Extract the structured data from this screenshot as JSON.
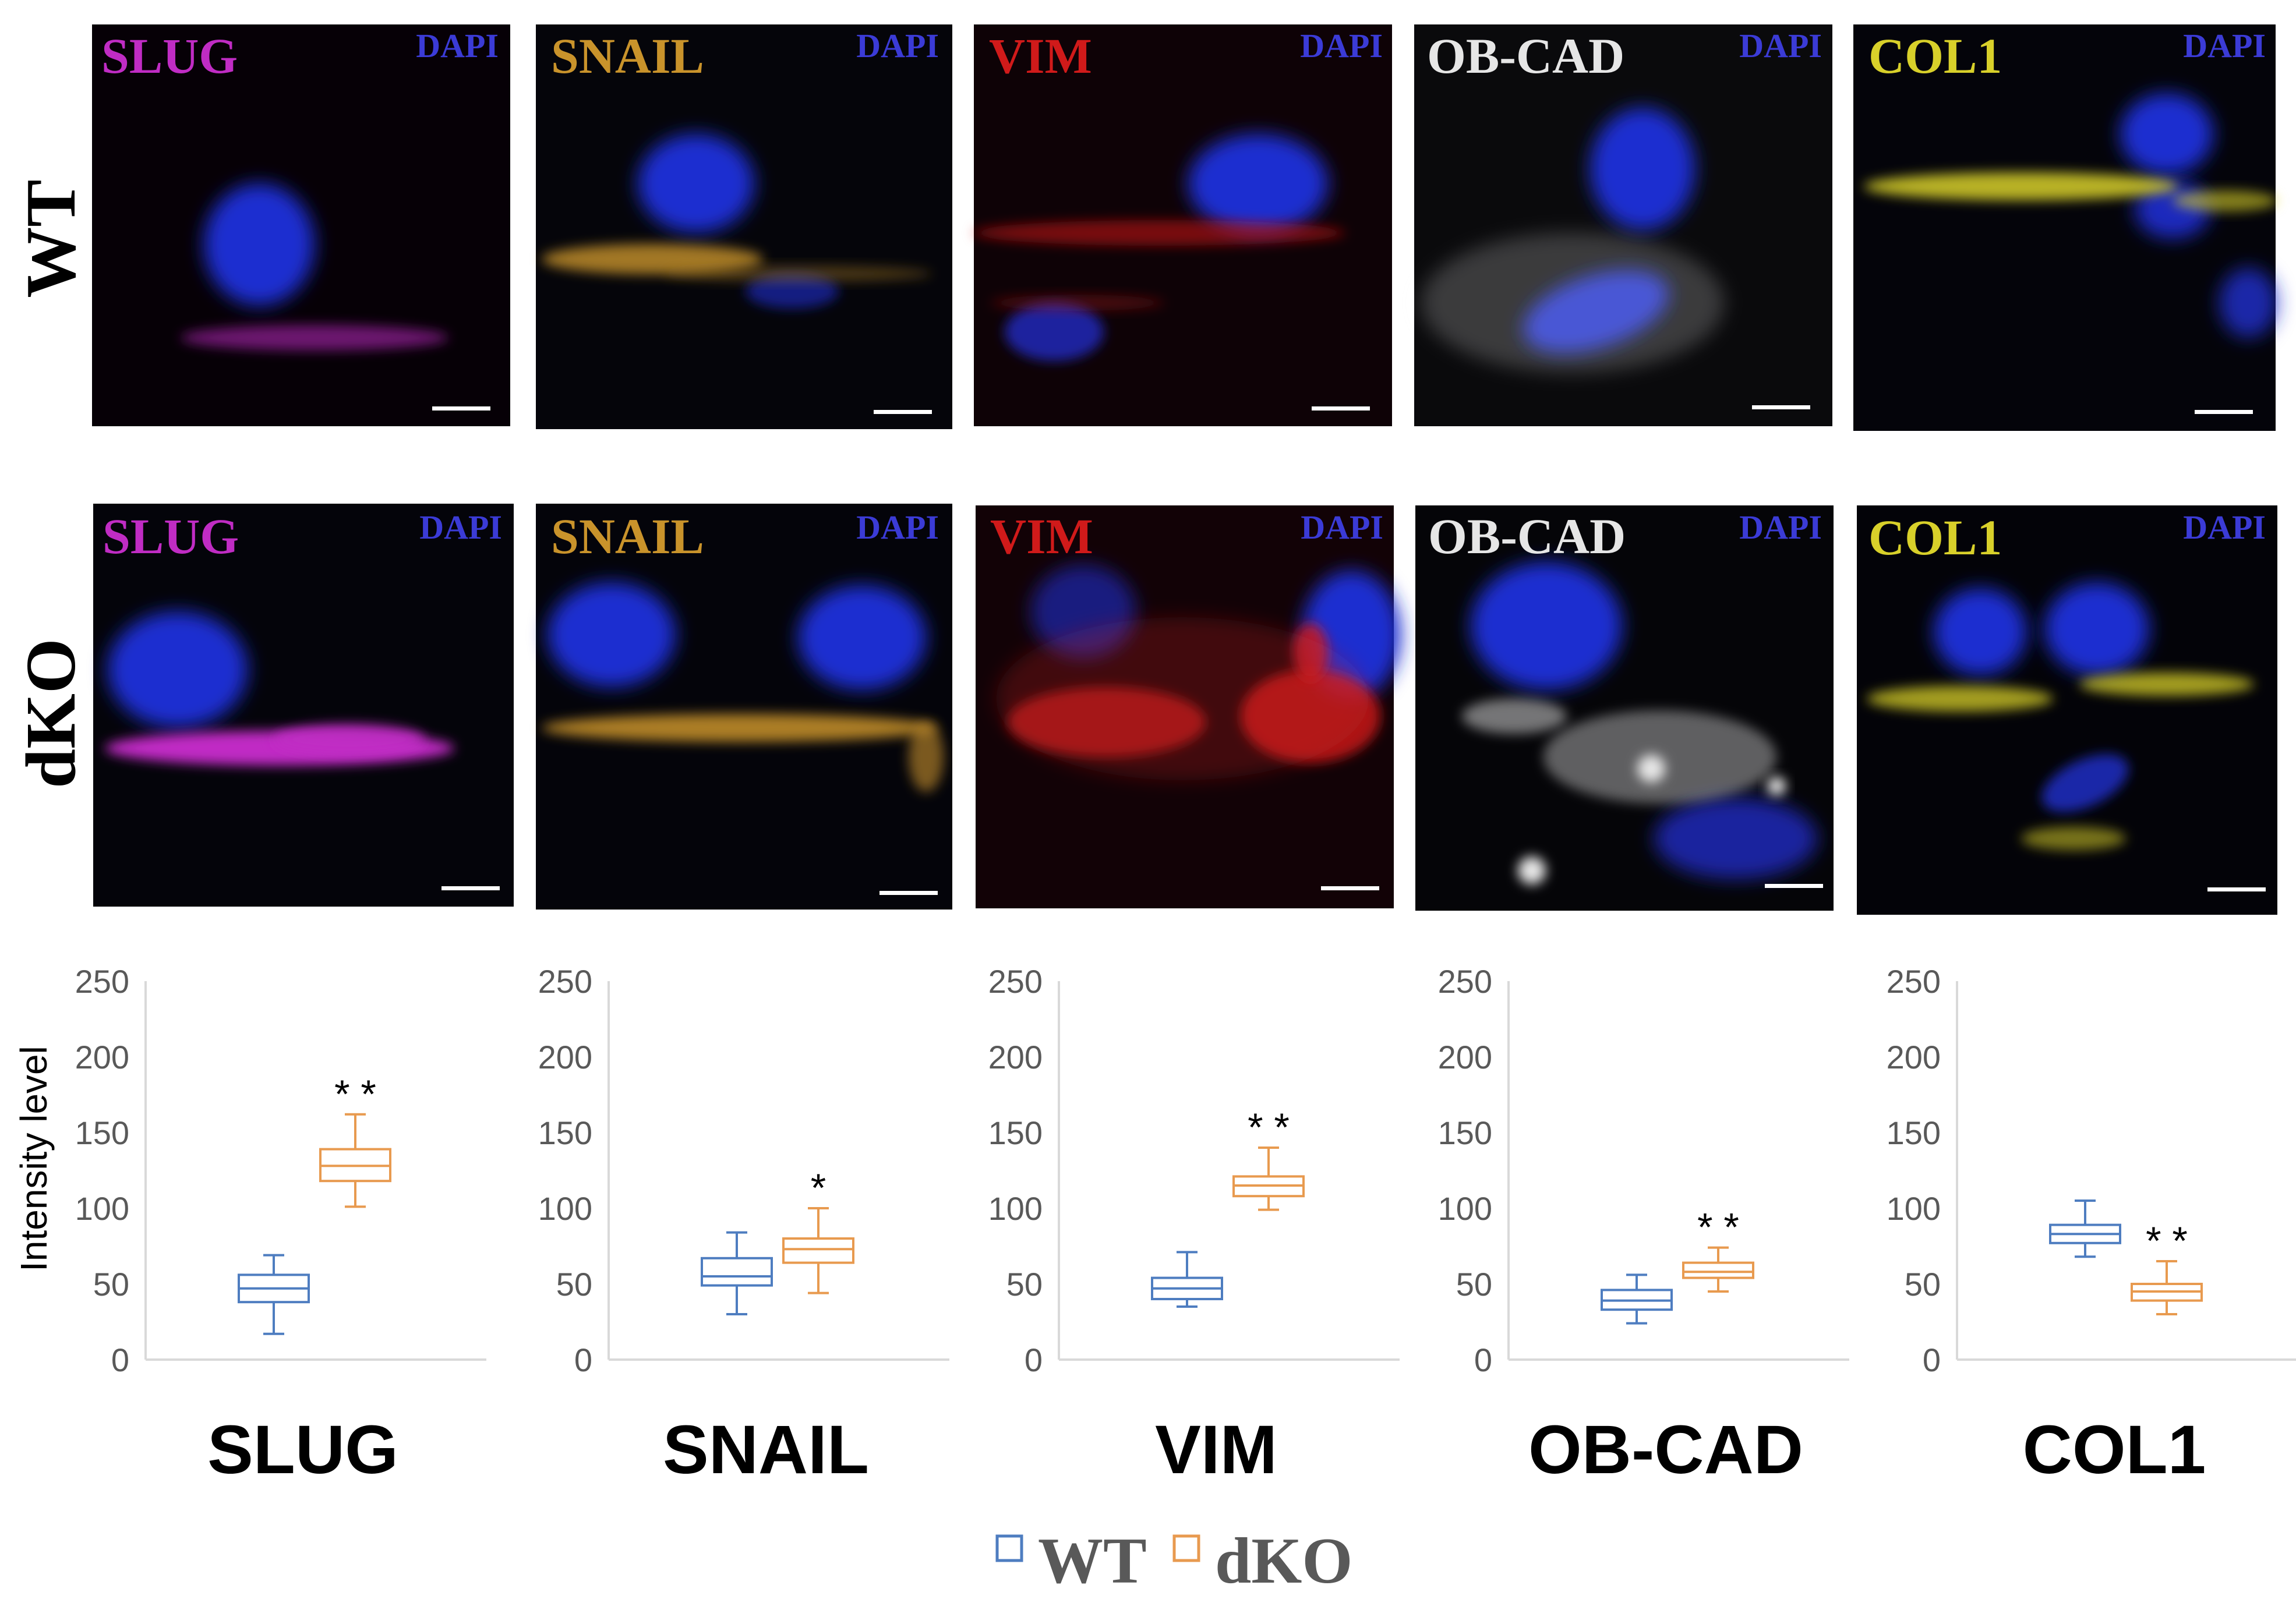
{
  "figure": {
    "rows": [
      {
        "label": "WT",
        "glow": "weak"
      },
      {
        "label": "dKO",
        "glow": "strong"
      }
    ],
    "dapi_label": "DAPI",
    "nucleus_color": "#1f2fd0",
    "panels": [
      {
        "label": "SLUG",
        "color": "#c02cc4"
      },
      {
        "label": "SNAIL",
        "color": "#c9932b"
      },
      {
        "label": "VIM",
        "color": "#d01a1a"
      },
      {
        "label": "OB-CAD",
        "color": "#e6e6e6"
      },
      {
        "label": "COL1",
        "color": "#d8d02a"
      }
    ]
  },
  "chart_data": {
    "type": "boxplot",
    "ylabel": "Intensity level",
    "ylim": [
      0,
      250
    ],
    "yticks": [
      0,
      50,
      100,
      150,
      200,
      250
    ],
    "series_colors": {
      "WT": "#4e7dc0",
      "dKO": "#e89a4f"
    },
    "legend": [
      "WT",
      "dKO"
    ],
    "groups": [
      {
        "name": "SLUG",
        "significance": "**",
        "WT": {
          "min": 17,
          "q1": 38,
          "median": 47,
          "q3": 56,
          "max": 69
        },
        "dKO": {
          "min": 101,
          "q1": 118,
          "median": 128,
          "q3": 139,
          "max": 162
        }
      },
      {
        "name": "SNAIL",
        "significance": "*",
        "WT": {
          "min": 30,
          "q1": 49,
          "median": 55,
          "q3": 67,
          "max": 84
        },
        "dKO": {
          "min": 44,
          "q1": 64,
          "median": 73,
          "q3": 80,
          "max": 100
        }
      },
      {
        "name": "VIM",
        "significance": "**",
        "WT": {
          "min": 35,
          "q1": 40,
          "median": 47,
          "q3": 54,
          "max": 71
        },
        "dKO": {
          "min": 99,
          "q1": 108,
          "median": 115,
          "q3": 121,
          "max": 140
        }
      },
      {
        "name": "OB-CAD",
        "significance": "**",
        "WT": {
          "min": 24,
          "q1": 33,
          "median": 39,
          "q3": 46,
          "max": 56
        },
        "dKO": {
          "min": 45,
          "q1": 54,
          "median": 58,
          "q3": 64,
          "max": 74
        }
      },
      {
        "name": "COL1",
        "significance": "**",
        "WT": {
          "min": 68,
          "q1": 77,
          "median": 83,
          "q3": 89,
          "max": 105
        },
        "dKO": {
          "min": 30,
          "q1": 39,
          "median": 45,
          "q3": 50,
          "max": 65
        }
      }
    ]
  }
}
